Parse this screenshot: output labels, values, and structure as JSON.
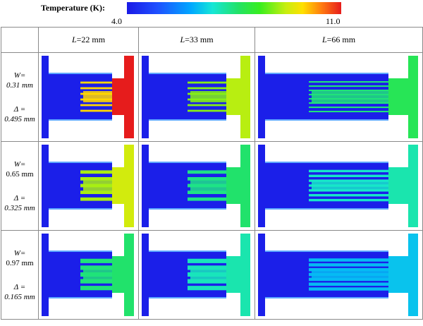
{
  "colorbar": {
    "title": "Temperature (K):",
    "min_label": "4.0",
    "max_label": "11.0",
    "min_value": 4.0,
    "max_value": 11.0
  },
  "columns": [
    {
      "symbol": "L",
      "value": "=22 mm"
    },
    {
      "symbol": "L",
      "value": "=33 mm"
    },
    {
      "symbol": "L",
      "value": "=66 mm"
    }
  ],
  "rows": [
    {
      "w_label": "W=",
      "w_value": "0.31 mm",
      "w_value_italic": true,
      "d_label": "Δ =",
      "d_value": "0.495 mm"
    },
    {
      "w_label": "W=",
      "w_value": "0.65 mm",
      "w_value_italic": false,
      "d_label": "Δ =",
      "d_value": "0.325 mm"
    },
    {
      "w_label": "W=",
      "w_value": "0.97 mm",
      "w_value_italic": false,
      "d_label": "Δ =",
      "d_value": "0.165 mm"
    }
  ],
  "simulations": [
    {
      "row": 0,
      "col": 0,
      "t_cold": 4.1,
      "t_fins": 9.8,
      "t_hot": 11.0
    },
    {
      "row": 0,
      "col": 1,
      "t_cold": 4.1,
      "t_fins": 8.8,
      "t_hot": 9.1
    },
    {
      "row": 0,
      "col": 2,
      "t_cold": 4.1,
      "t_fins": 7.5,
      "t_hot": 7.8
    },
    {
      "row": 1,
      "col": 0,
      "t_cold": 4.1,
      "t_fins": 9.0,
      "t_hot": 9.3
    },
    {
      "row": 1,
      "col": 1,
      "t_cold": 4.1,
      "t_fins": 7.4,
      "t_hot": 7.6
    },
    {
      "row": 1,
      "col": 2,
      "t_cold": 4.1,
      "t_fins": 6.9,
      "t_hot": 7.1
    },
    {
      "row": 2,
      "col": 0,
      "t_cold": 4.1,
      "t_fins": 7.5,
      "t_hot": 7.6
    },
    {
      "row": 2,
      "col": 1,
      "t_cold": 4.1,
      "t_fins": 7.0,
      "t_hot": 7.1
    },
    {
      "row": 2,
      "col": 2,
      "t_cold": 4.1,
      "t_fins": 6.3,
      "t_hot": 6.4
    }
  ],
  "colors": {
    "cold": "#1a3ae6",
    "border": "#8a8a8a"
  }
}
